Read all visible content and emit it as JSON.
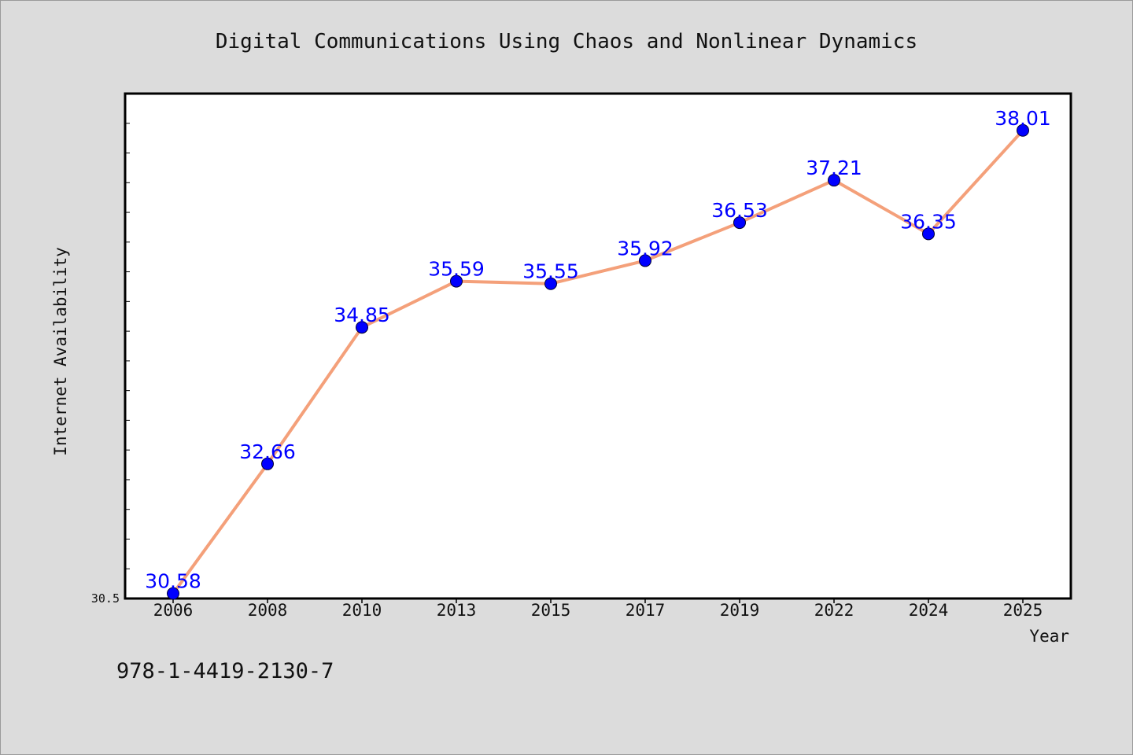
{
  "chart_data": {
    "type": "line",
    "title": "Digital Communications Using Chaos and Nonlinear Dynamics",
    "xlabel": "Year",
    "ylabel": "Internet Availability",
    "categories": [
      "2006",
      "2008",
      "2010",
      "2013",
      "2015",
      "2017",
      "2019",
      "2022",
      "2024",
      "2025"
    ],
    "series": [
      {
        "values": [
          30.58,
          32.66,
          34.85,
          35.59,
          35.55,
          35.92,
          36.53,
          37.21,
          36.35,
          38.01
        ],
        "data_labels": [
          "30.58",
          "32.66",
          "34.85",
          "35.59",
          "35.55",
          "35.92",
          "36.53",
          "37.21",
          "36.35",
          "38.01"
        ]
      }
    ],
    "ylim": [
      30.5,
      38.6
    ],
    "yticks": [
      "30.5"
    ],
    "grid": false,
    "line_color": "#f4a07a",
    "marker_color": "#0000ff",
    "label_color": "#0000ff",
    "plot_background": "#ffffff",
    "figure_background": "#dcdcdc"
  },
  "footer": {
    "isbn": "978-1-4419-2130-7"
  }
}
